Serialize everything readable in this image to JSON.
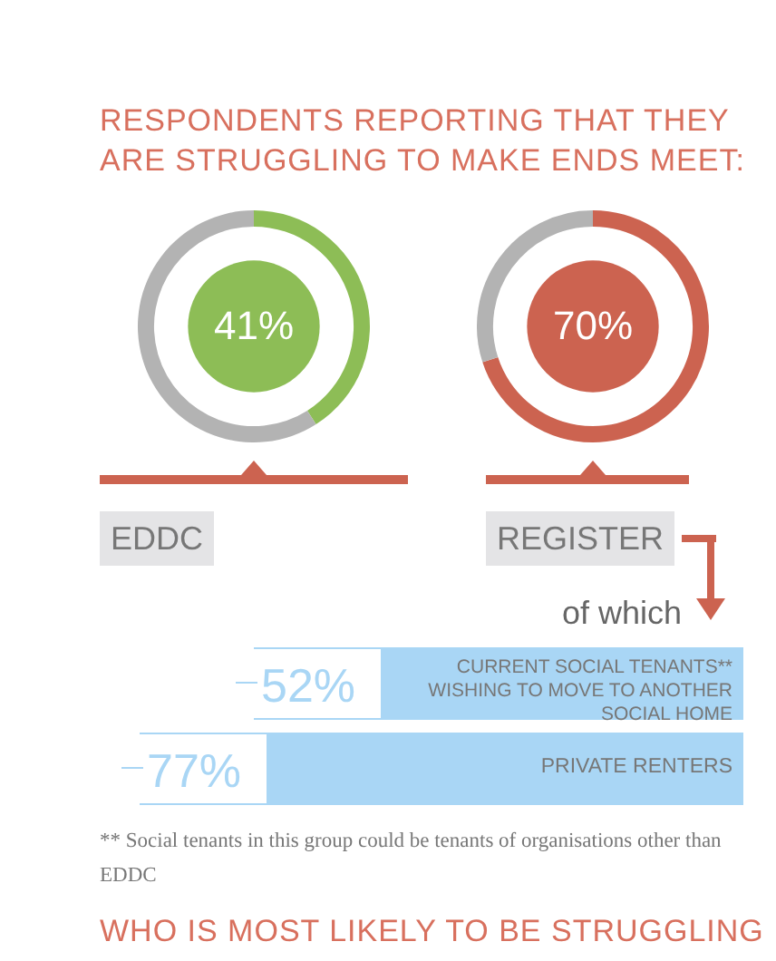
{
  "chart_data": [
    {
      "type": "donut",
      "title": "RESPONDENTS REPORTING THAT THEY ARE STRUGGLING TO MAKE ENDS MEET:",
      "xlabel": "EDDC",
      "categories": [
        null,
        null
      ],
      "values": [
        41,
        59
      ],
      "colors": [
        "#8dbd56",
        "#b3b3b3"
      ],
      "value_labels": [
        "41%",
        null
      ]
    },
    {
      "type": "donut",
      "xlabel": "REGISTER",
      "categories": [
        null,
        null
      ],
      "values": [
        70,
        30
      ],
      "colors": [
        "#cc6350",
        "#b3b3b3"
      ],
      "value_labels": [
        "70%",
        null
      ]
    },
    {
      "type": "other",
      "annotations": [
        "of which",
        "52%",
        "CURRENT SOCIAL TENANTS** WISHING TO MOVE TO ANOTHER SOCIAL HOME",
        "77%",
        "PRIVATE RENTERS",
        "** Social tenants in this group could be tenants of organisations other than EDDC",
        "WHO IS MOST LIKELY TO BE STRUGGLING"
      ]
    }
  ]
}
